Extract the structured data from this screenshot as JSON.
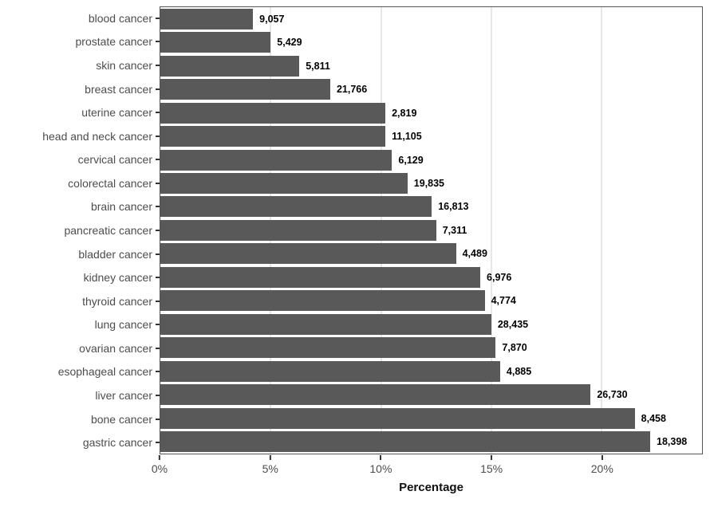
{
  "chart_data": {
    "type": "bar",
    "orientation": "horizontal",
    "xlabel": "Percentage",
    "ylabel": "",
    "xlim": [
      0,
      24.55
    ],
    "grid": "major-vertical-only",
    "legend": "none",
    "x_ticks": [
      {
        "value": 0,
        "label": "0%"
      },
      {
        "value": 5,
        "label": "5%"
      },
      {
        "value": 10,
        "label": "10%"
      },
      {
        "value": 15,
        "label": "15%"
      },
      {
        "value": 20,
        "label": "20%"
      }
    ],
    "bars": [
      {
        "category": "blood cancer",
        "percent": 4.2,
        "count_label": "9,057"
      },
      {
        "category": "prostate cancer",
        "percent": 5.0,
        "count_label": "5,429"
      },
      {
        "category": "skin cancer",
        "percent": 6.3,
        "count_label": "5,811"
      },
      {
        "category": "breast cancer",
        "percent": 7.7,
        "count_label": "21,766"
      },
      {
        "category": "uterine cancer",
        "percent": 10.2,
        "count_label": "2,819"
      },
      {
        "category": "head and neck cancer",
        "percent": 10.2,
        "count_label": "11,105"
      },
      {
        "category": "cervical cancer",
        "percent": 10.5,
        "count_label": "6,129"
      },
      {
        "category": "colorectal cancer",
        "percent": 11.2,
        "count_label": "19,835"
      },
      {
        "category": "brain cancer",
        "percent": 12.3,
        "count_label": "16,813"
      },
      {
        "category": "pancreatic cancer",
        "percent": 12.5,
        "count_label": "7,311"
      },
      {
        "category": "bladder cancer",
        "percent": 13.4,
        "count_label": "4,489"
      },
      {
        "category": "kidney cancer",
        "percent": 14.5,
        "count_label": "6,976"
      },
      {
        "category": "thyroid cancer",
        "percent": 14.7,
        "count_label": "4,774"
      },
      {
        "category": "lung cancer",
        "percent": 15.0,
        "count_label": "28,435"
      },
      {
        "category": "ovarian cancer",
        "percent": 15.2,
        "count_label": "7,870"
      },
      {
        "category": "esophageal cancer",
        "percent": 15.4,
        "count_label": "4,885"
      },
      {
        "category": "liver cancer",
        "percent": 19.5,
        "count_label": "26,730"
      },
      {
        "category": "bone cancer",
        "percent": 21.5,
        "count_label": "8,458"
      },
      {
        "category": "gastric cancer",
        "percent": 22.2,
        "count_label": "18,398"
      }
    ]
  },
  "colors": {
    "bar_fill": "#595959",
    "panel_border": "#555555",
    "gridline": "#e7e7e7",
    "axis_text": "#4d4d4d",
    "value_label": "#000000",
    "tick_mark": "#333333",
    "background": "#ffffff"
  }
}
